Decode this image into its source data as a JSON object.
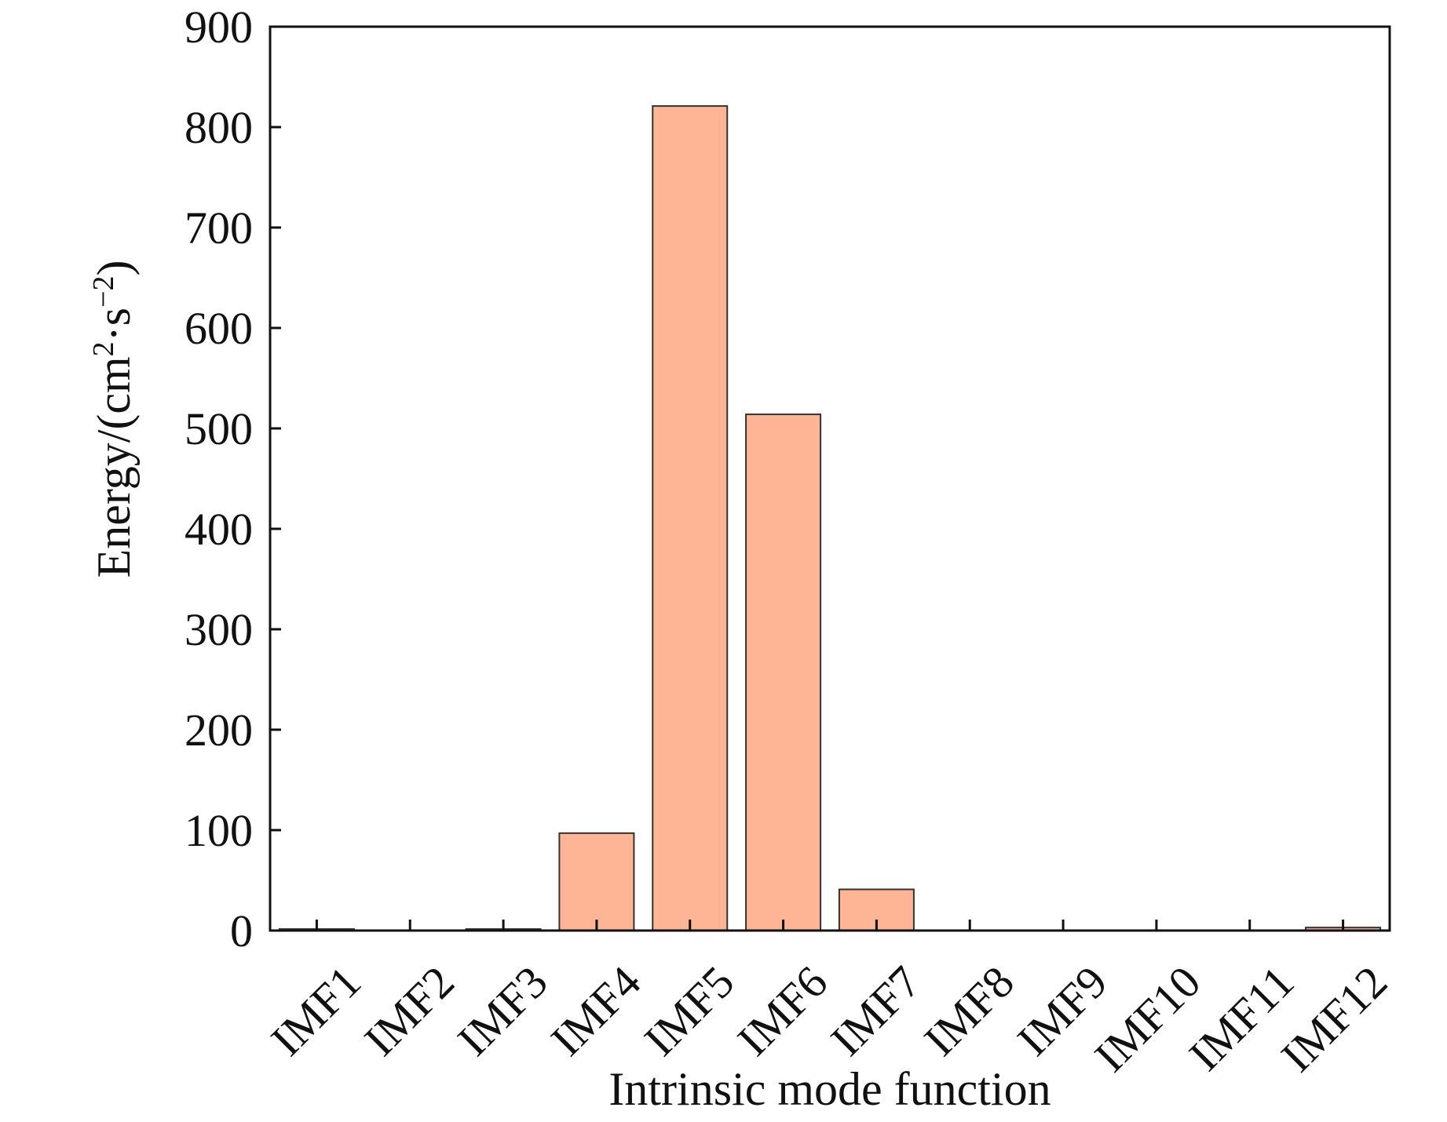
{
  "chart_data": {
    "type": "bar",
    "categories": [
      "IMF1",
      "IMF2",
      "IMF3",
      "IMF4",
      "IMF5",
      "IMF6",
      "IMF7",
      "IMF8",
      "IMF9",
      "IMF10",
      "IMF11",
      "IMF12"
    ],
    "values": [
      1.5,
      0.3,
      1.5,
      97,
      821,
      514,
      41,
      0.3,
      0.3,
      0.3,
      0.3,
      3
    ],
    "xlabel": "Intrinsic mode function",
    "ylabel": {
      "base": "Energy/(cm",
      "sup1": "2",
      "mid": "·s",
      "sup2": "−2",
      "end": ")"
    },
    "ylim": [
      0,
      900
    ],
    "yticks": [
      0,
      100,
      200,
      300,
      400,
      500,
      600,
      700,
      800,
      900
    ],
    "grid": false,
    "legend": "none",
    "colors": {
      "bar_fill": "#FDB596",
      "bar_stroke": "#333333",
      "axis": "#111111"
    }
  }
}
